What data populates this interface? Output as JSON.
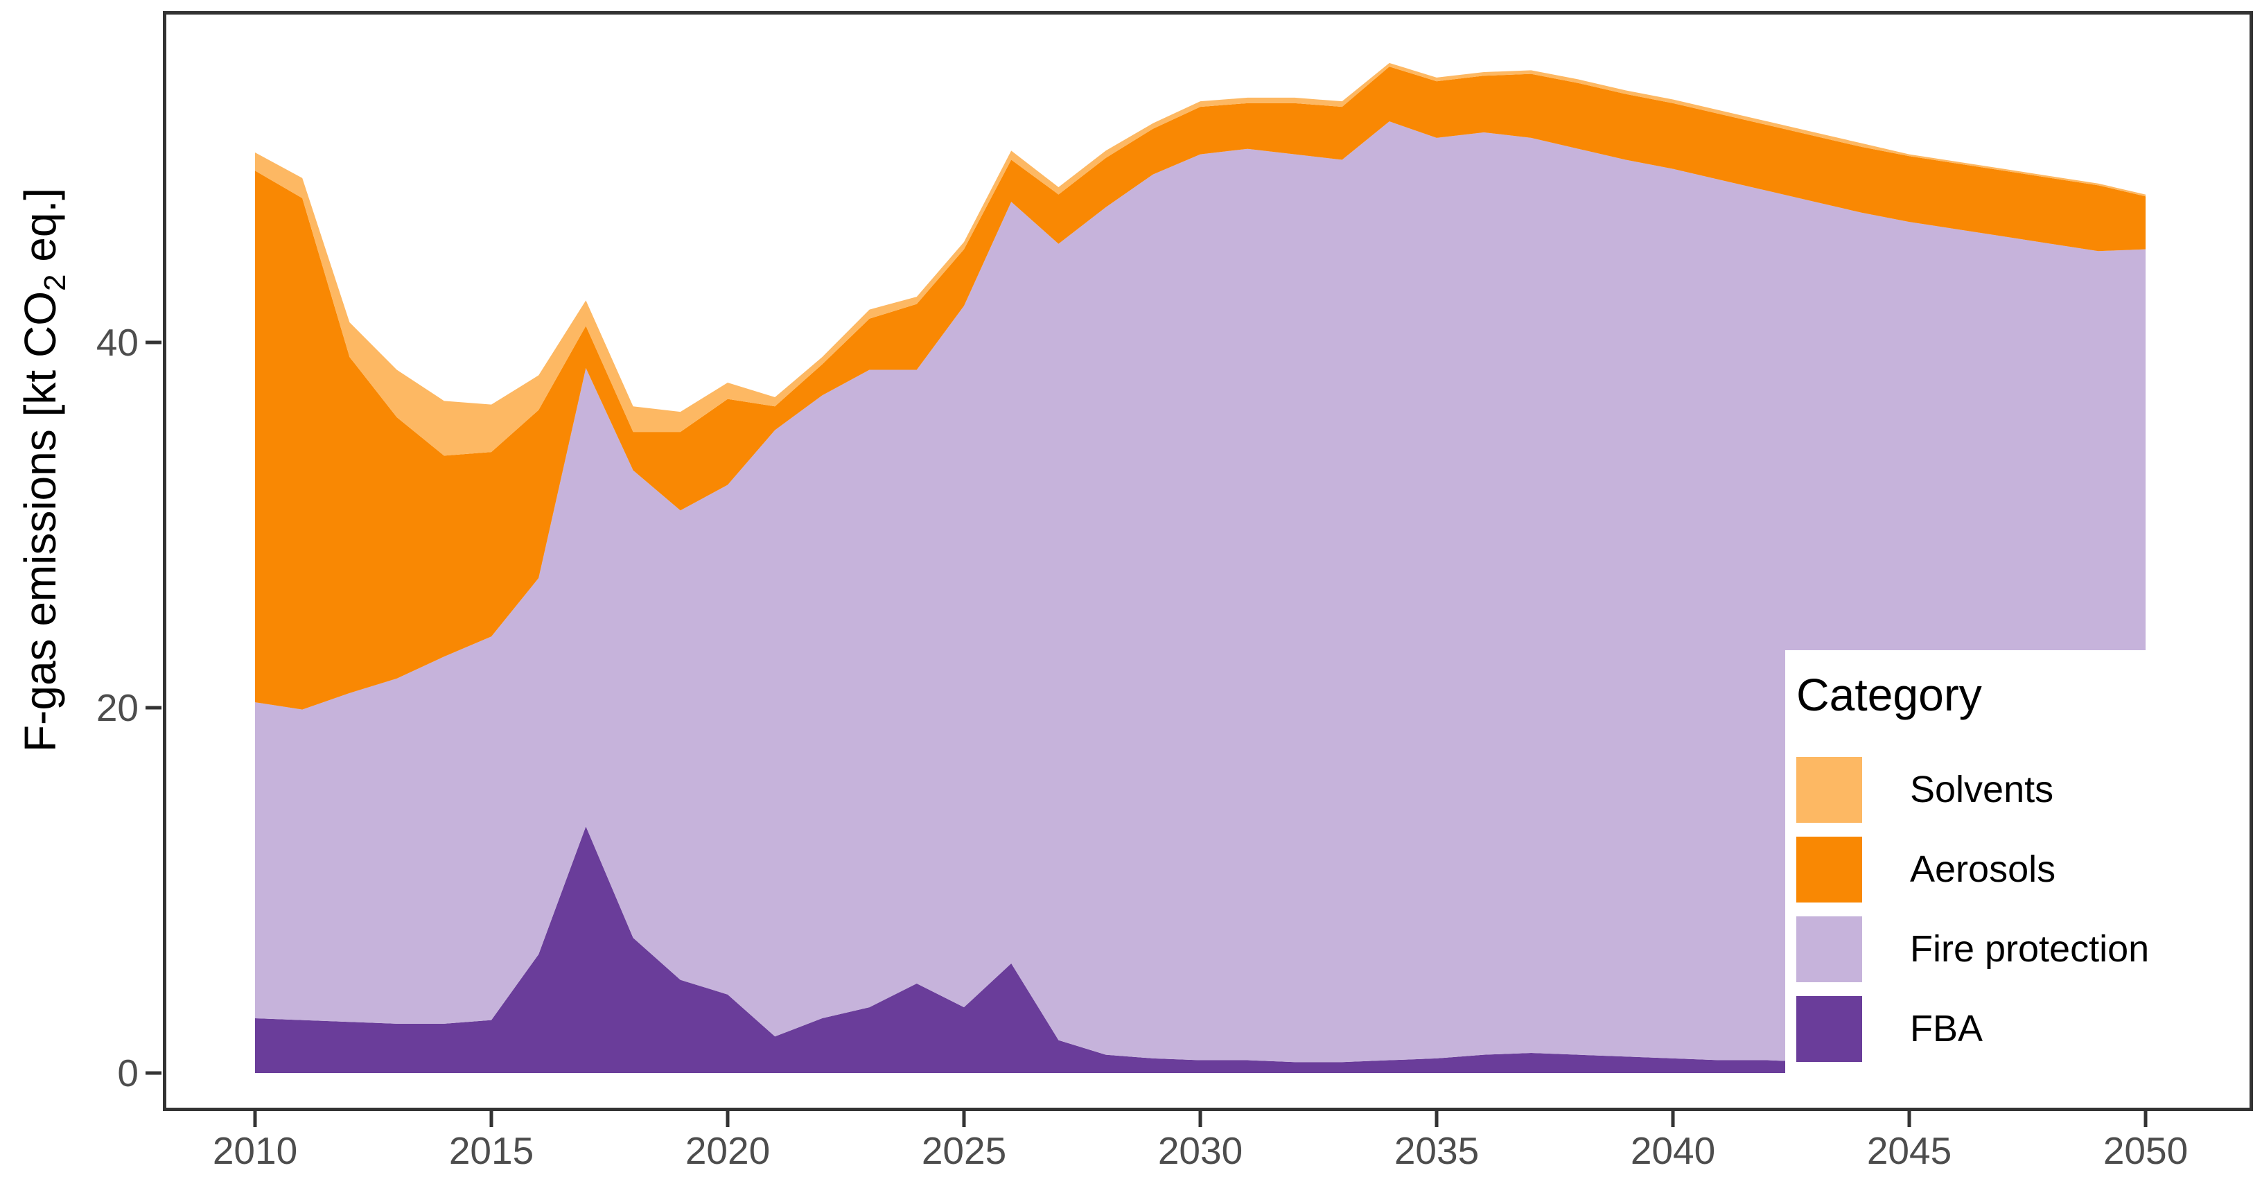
{
  "chart_data": {
    "type": "area",
    "stacked": true,
    "title": "",
    "xlabel": "",
    "ylabel_parts": {
      "prefix": "F-gas emissions [kt CO",
      "sub": "2",
      "suffix": " eq.]"
    },
    "x_ticks": [
      2010,
      2015,
      2020,
      2025,
      2030,
      2035,
      2040,
      2045,
      2050
    ],
    "y_ticks": [
      0,
      20,
      40
    ],
    "xlim": [
      2010,
      2050
    ],
    "ylim": [
      0,
      58
    ],
    "grid": false,
    "legend_position": "bottom-right-overlay",
    "years": [
      2010,
      2011,
      2012,
      2013,
      2014,
      2015,
      2016,
      2017,
      2018,
      2019,
      2020,
      2021,
      2022,
      2023,
      2024,
      2025,
      2026,
      2027,
      2028,
      2029,
      2030,
      2031,
      2032,
      2033,
      2034,
      2035,
      2036,
      2037,
      2038,
      2039,
      2040,
      2041,
      2042,
      2043,
      2044,
      2045,
      2046,
      2047,
      2048,
      2049,
      2050
    ],
    "series": [
      {
        "name": "FBA",
        "color": "#6A3D9A",
        "values": [
          3.0,
          2.9,
          2.8,
          2.7,
          2.7,
          2.9,
          6.5,
          13.5,
          7.4,
          5.1,
          4.3,
          2.0,
          3.0,
          3.6,
          4.9,
          3.6,
          6.0,
          1.8,
          1.0,
          0.8,
          0.7,
          0.7,
          0.6,
          0.6,
          0.7,
          0.8,
          1.0,
          1.1,
          1.0,
          0.9,
          0.8,
          0.7,
          0.7,
          0.6,
          0.6,
          0.6,
          0.6,
          0.6,
          0.6,
          0.6,
          0.6
        ]
      },
      {
        "name": "Fire protection",
        "color": "#C6B3DB",
        "values": [
          17.3,
          17.0,
          18.0,
          18.9,
          20.1,
          21.0,
          20.6,
          25.1,
          25.6,
          25.7,
          27.9,
          33.2,
          34.1,
          34.9,
          33.6,
          38.4,
          41.7,
          43.6,
          46.4,
          48.4,
          49.6,
          49.9,
          49.7,
          49.4,
          51.4,
          50.4,
          50.5,
          50.1,
          49.6,
          49.1,
          48.7,
          48.2,
          47.6,
          47.1,
          46.5,
          46.0,
          45.6,
          45.2,
          44.8,
          44.4,
          44.5
        ]
      },
      {
        "name": "Aerosols",
        "color": "#F98803",
        "values": [
          29.1,
          28.0,
          18.4,
          14.3,
          11.0,
          10.1,
          9.2,
          2.3,
          2.1,
          4.3,
          4.7,
          1.3,
          1.7,
          2.8,
          3.6,
          3.1,
          2.3,
          2.7,
          2.7,
          2.5,
          2.6,
          2.5,
          2.8,
          2.9,
          3.0,
          3.1,
          3.1,
          3.5,
          3.6,
          3.6,
          3.6,
          3.6,
          3.6,
          3.6,
          3.6,
          3.6,
          3.6,
          3.6,
          3.6,
          3.6,
          2.9
        ]
      },
      {
        "name": "Solvents",
        "color": "#FDB863",
        "values": [
          1.0,
          1.1,
          1.9,
          2.6,
          3.0,
          2.6,
          1.9,
          1.4,
          1.4,
          1.1,
          0.9,
          0.5,
          0.4,
          0.5,
          0.4,
          0.4,
          0.5,
          0.4,
          0.4,
          0.3,
          0.3,
          0.3,
          0.3,
          0.3,
          0.2,
          0.2,
          0.2,
          0.2,
          0.2,
          0.2,
          0.2,
          0.2,
          0.2,
          0.2,
          0.2,
          0.1,
          0.1,
          0.1,
          0.1,
          0.1,
          0.1
        ]
      }
    ],
    "colors": {
      "axis": "#333333",
      "tick_label": "#4d4d4d",
      "background": "#ffffff"
    }
  },
  "legend": {
    "title": "Category",
    "items": [
      {
        "label": "Solvents",
        "color": "#FDB863"
      },
      {
        "label": "Aerosols",
        "color": "#F98803"
      },
      {
        "label": "Fire protection",
        "color": "#C6B3DB"
      },
      {
        "label": "FBA",
        "color": "#6A3D9A"
      }
    ]
  }
}
